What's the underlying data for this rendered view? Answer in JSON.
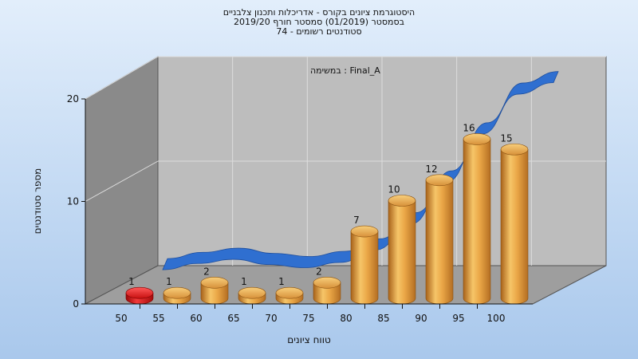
{
  "chart_data": {
    "type": "bar",
    "title_lines": [
      "היסטוגרמת ציונים בקורס - אדריכלות ותכנון צלבניים",
      "בסמסטר  (01/2019)  סמסטר חורף 2019/20",
      "סטודנטים רשומים - 74"
    ],
    "inner_title": "במשימה : Final_A",
    "xlabel": "טווח ציונים",
    "ylabel": "מספר סטודנטים",
    "x_ticks": [
      "50",
      "55",
      "60",
      "65",
      "70",
      "75",
      "80",
      "85",
      "90",
      "95",
      "100"
    ],
    "y_ticks": [
      "0",
      "10",
      "20"
    ],
    "ylim": [
      0,
      20
    ],
    "values": [
      1,
      1,
      2,
      1,
      1,
      2,
      7,
      10,
      12,
      16,
      15
    ],
    "curve": [
      0.6,
      1.2,
      1.6,
      1.1,
      0.8,
      1.3,
      2.5,
      5.0,
      9.0,
      13.6,
      17.4,
      18.5
    ],
    "highlight_index": 0,
    "colors": {
      "bar": "#e8a43c",
      "highlight": "#e01818",
      "curve": "#2f6fd0"
    },
    "grid": true
  }
}
